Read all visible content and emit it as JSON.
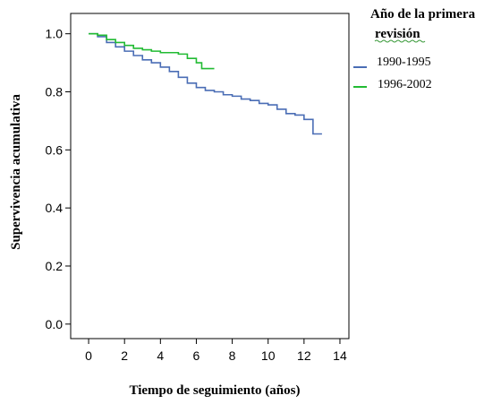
{
  "chart_data": {
    "type": "line",
    "step": true,
    "title": "",
    "xlabel": "Tiempo de seguimiento (años)",
    "ylabel": "Supervivencia acumulativa",
    "xlim": [
      -1,
      14.5
    ],
    "ylim": [
      -0.05,
      1.07
    ],
    "xticks": [
      0,
      2,
      4,
      6,
      8,
      10,
      12,
      14
    ],
    "yticks": [
      0.0,
      0.2,
      0.4,
      0.6,
      0.8,
      1.0
    ],
    "ytick_labels": [
      "0.0",
      "0.2",
      "0.4",
      "0.6",
      "0.8",
      "1.0"
    ],
    "grid": false,
    "legend": {
      "title_line1": "Año de la primera",
      "title_line2": "revisión",
      "placement": "right"
    },
    "series": [
      {
        "name": "1990-1995",
        "color": "#4a6db5",
        "points": [
          [
            0,
            1.0
          ],
          [
            0.5,
            0.99
          ],
          [
            1.0,
            0.97
          ],
          [
            1.5,
            0.955
          ],
          [
            2.0,
            0.94
          ],
          [
            2.5,
            0.925
          ],
          [
            3.0,
            0.91
          ],
          [
            3.5,
            0.9
          ],
          [
            4.0,
            0.885
          ],
          [
            4.5,
            0.87
          ],
          [
            5.0,
            0.85
          ],
          [
            5.5,
            0.83
          ],
          [
            6.0,
            0.815
          ],
          [
            6.5,
            0.805
          ],
          [
            7.0,
            0.8
          ],
          [
            7.5,
            0.79
          ],
          [
            8.0,
            0.785
          ],
          [
            8.5,
            0.775
          ],
          [
            9.0,
            0.77
          ],
          [
            9.5,
            0.76
          ],
          [
            10.0,
            0.755
          ],
          [
            10.5,
            0.74
          ],
          [
            11.0,
            0.725
          ],
          [
            11.5,
            0.72
          ],
          [
            12.0,
            0.705
          ],
          [
            12.5,
            0.655
          ],
          [
            13.0,
            0.655
          ]
        ]
      },
      {
        "name": "1996-2002",
        "color": "#22bb33",
        "points": [
          [
            0,
            1.0
          ],
          [
            0.5,
            0.995
          ],
          [
            1.0,
            0.98
          ],
          [
            1.5,
            0.97
          ],
          [
            2.0,
            0.96
          ],
          [
            2.5,
            0.95
          ],
          [
            3.0,
            0.945
          ],
          [
            3.5,
            0.94
          ],
          [
            4.0,
            0.935
          ],
          [
            4.5,
            0.935
          ],
          [
            5.0,
            0.93
          ],
          [
            5.5,
            0.915
          ],
          [
            6.0,
            0.9
          ],
          [
            6.3,
            0.88
          ],
          [
            7.0,
            0.88
          ]
        ]
      }
    ]
  }
}
